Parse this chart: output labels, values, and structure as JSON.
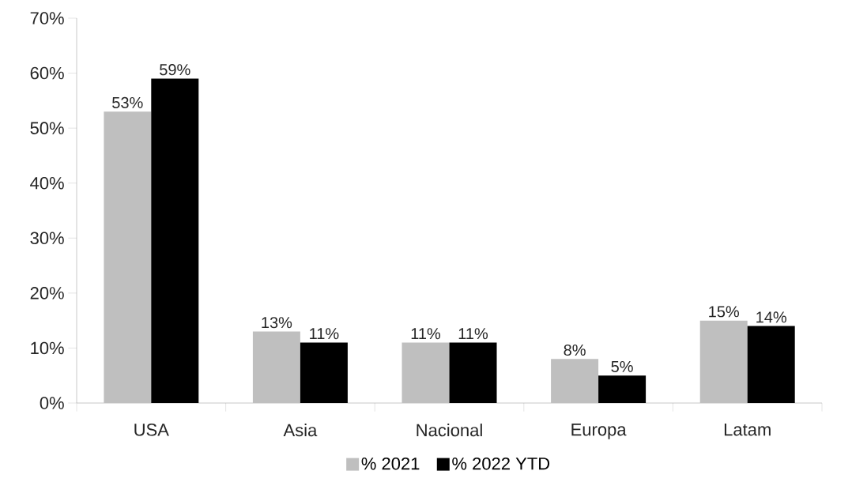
{
  "chart_data": {
    "type": "bar",
    "categories": [
      "USA",
      "Asia",
      "Nacional",
      "Europa",
      "Latam"
    ],
    "series": [
      {
        "name": "% 2021",
        "color": "#bfbfbf",
        "values": [
          53,
          13,
          11,
          8,
          15
        ],
        "value_labels": [
          "53%",
          "13%",
          "11%",
          "8%",
          "15%"
        ]
      },
      {
        "name": "% 2022 YTD",
        "color": "#000000",
        "values": [
          59,
          11,
          11,
          5,
          14
        ],
        "value_labels": [
          "59%",
          "11%",
          "11%",
          "5%",
          "14%"
        ]
      }
    ],
    "ylim": [
      0,
      70
    ],
    "yticks": [
      {
        "value": 0,
        "label": "0%"
      },
      {
        "value": 10,
        "label": "10%"
      },
      {
        "value": 20,
        "label": "20%"
      },
      {
        "value": 30,
        "label": "30%"
      },
      {
        "value": 40,
        "label": "40%"
      },
      {
        "value": 50,
        "label": "50%"
      },
      {
        "value": 60,
        "label": "60%"
      },
      {
        "value": 70,
        "label": "70%"
      }
    ],
    "grid": false,
    "legend": "bottom"
  }
}
